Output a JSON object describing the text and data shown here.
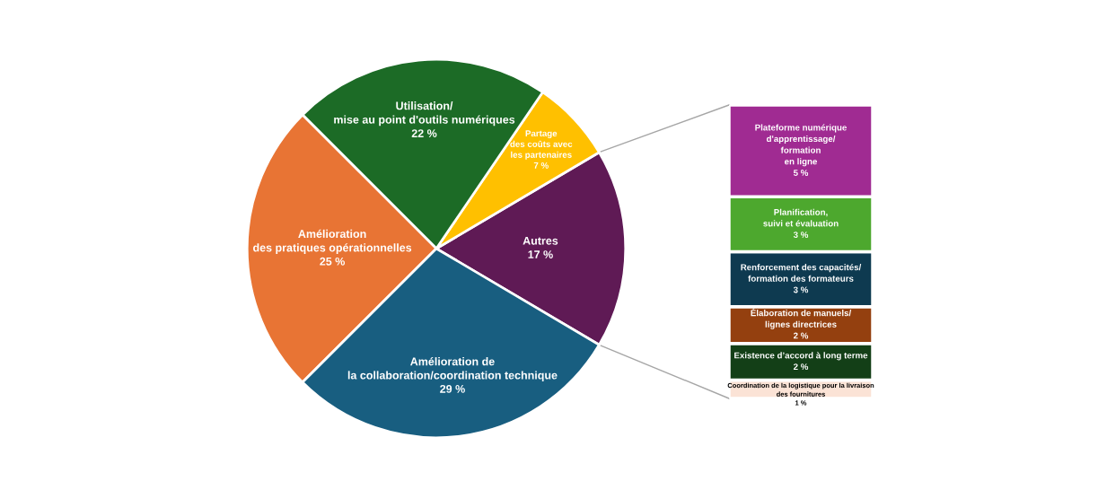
{
  "chart_data": [
    {
      "type": "pie",
      "categories": [
        "Autres",
        "Partage\ndes coûts avec\nles partenaires",
        "Utilisation/\nmise au point d'outils numériques",
        "Amélioration\ndes pratiques opérationnelles",
        "Amélioration de\nla collaboration/coordination technique"
      ],
      "values": [
        17,
        7,
        22,
        25,
        29
      ],
      "value_labels": [
        "17 %",
        "7 %",
        "22 %",
        "25 %",
        "29 %"
      ],
      "colors": [
        "#5f1a55",
        "#ffc000",
        "#1c6b26",
        "#e87434",
        "#185e80"
      ]
    },
    {
      "type": "bar",
      "stacked": true,
      "categories": [
        null
      ],
      "series": [
        {
          "name": "Coordination de la logistique pour la livraison\ndes fournitures",
          "color": "#fbe3d6",
          "values": [
            1
          ],
          "value_labels": [
            "1 %"
          ]
        },
        {
          "name": "Existence d’accord à long terme",
          "color": "#133f17",
          "values": [
            2
          ],
          "value_labels": [
            "2 %"
          ]
        },
        {
          "name": "Élaboration de manuels/\nlignes directrices",
          "color": "#94400f",
          "values": [
            2
          ],
          "value_labels": [
            "2 %"
          ]
        },
        {
          "name": "Renforcement des capacités/\nformation des formateurs",
          "color": "#0e3a50",
          "values": [
            3
          ],
          "value_labels": [
            "3 %"
          ]
        },
        {
          "name": "Planification,\nsuivi et évaluation",
          "color": "#4da82e",
          "values": [
            3
          ],
          "value_labels": [
            "3 %"
          ]
        },
        {
          "name": "Plateforme numérique\nd'apprentissage/\nformation\nen ligne",
          "color": "#a02b92",
          "values": [
            5
          ],
          "value_labels": [
            "5 %"
          ]
        }
      ]
    }
  ]
}
